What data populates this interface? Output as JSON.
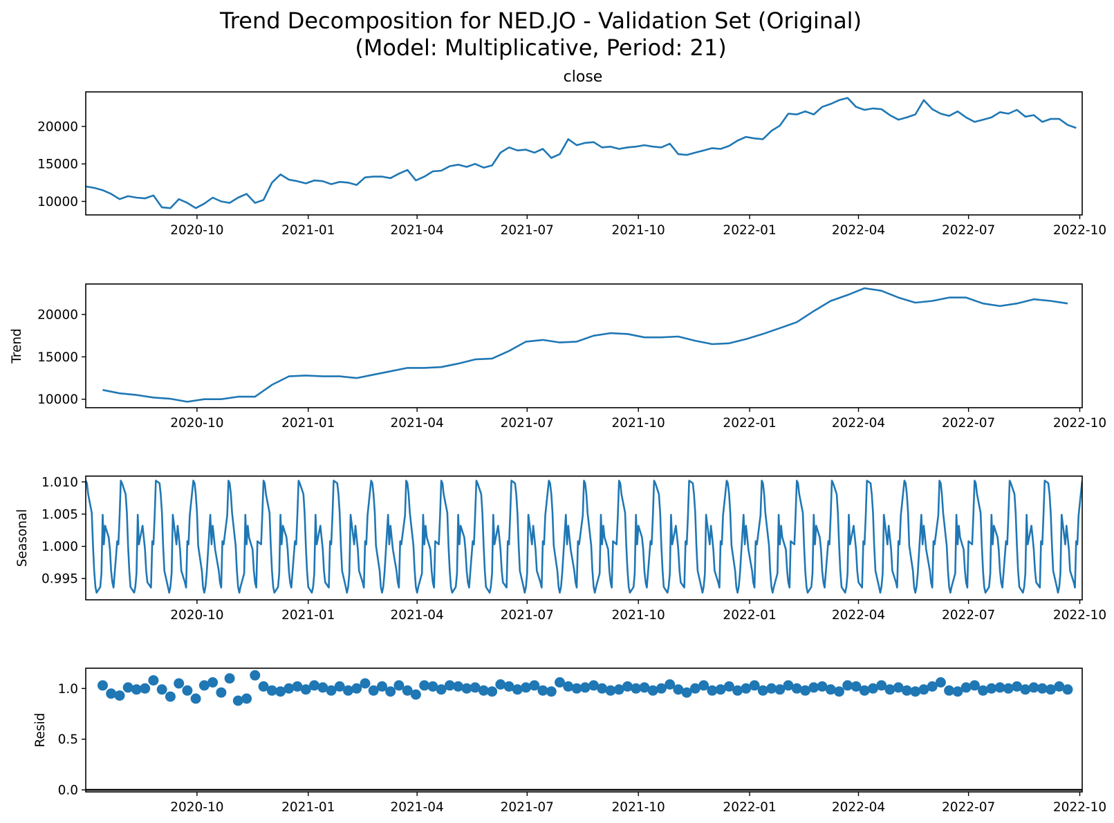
{
  "figure": {
    "title_line1": "Trend Decomposition for NED.JO - Validation Set (Original)",
    "title_line2": "(Model: Multiplicative, Period: 21)"
  },
  "series_color": "#1f77b4",
  "chart_data": [
    {
      "type": "line",
      "title": "close",
      "ylabel": "",
      "xlim": [
        "2020-07-01",
        "2022-10-03"
      ],
      "ylim": [
        8200,
        24600
      ],
      "yticks": [
        10000,
        15000,
        20000
      ],
      "ytick_labels": [
        "10000",
        "15000",
        "20000"
      ],
      "xticks": [
        "2020-10-01",
        "2021-01-01",
        "2021-04-01",
        "2021-07-01",
        "2021-10-01",
        "2022-01-01",
        "2022-04-01",
        "2022-07-01",
        "2022-10-01"
      ],
      "xtick_labels": [
        "2020-10",
        "2021-01",
        "2021-04",
        "2021-07",
        "2021-10",
        "2022-01",
        "2022-04",
        "2022-07",
        "2022-10"
      ],
      "x": [
        "2020-07-01",
        "2020-07-08",
        "2020-07-15",
        "2020-07-22",
        "2020-07-29",
        "2020-08-05",
        "2020-08-12",
        "2020-08-19",
        "2020-08-26",
        "2020-09-02",
        "2020-09-09",
        "2020-09-16",
        "2020-09-23",
        "2020-09-30",
        "2020-10-07",
        "2020-10-14",
        "2020-10-21",
        "2020-10-28",
        "2020-11-04",
        "2020-11-11",
        "2020-11-18",
        "2020-11-25",
        "2020-12-02",
        "2020-12-09",
        "2020-12-16",
        "2020-12-23",
        "2020-12-30",
        "2021-01-06",
        "2021-01-13",
        "2021-01-20",
        "2021-01-27",
        "2021-02-03",
        "2021-02-10",
        "2021-02-17",
        "2021-02-24",
        "2021-03-03",
        "2021-03-10",
        "2021-03-17",
        "2021-03-24",
        "2021-03-31",
        "2021-04-07",
        "2021-04-14",
        "2021-04-21",
        "2021-04-28",
        "2021-05-05",
        "2021-05-12",
        "2021-05-19",
        "2021-05-26",
        "2021-06-02",
        "2021-06-09",
        "2021-06-16",
        "2021-06-23",
        "2021-06-30",
        "2021-07-07",
        "2021-07-14",
        "2021-07-21",
        "2021-07-28",
        "2021-08-04",
        "2021-08-11",
        "2021-08-18",
        "2021-08-25",
        "2021-09-01",
        "2021-09-08",
        "2021-09-15",
        "2021-09-22",
        "2021-09-29",
        "2021-10-06",
        "2021-10-13",
        "2021-10-20",
        "2021-10-27",
        "2021-11-03",
        "2021-11-10",
        "2021-11-17",
        "2021-11-24",
        "2021-12-01",
        "2021-12-08",
        "2021-12-15",
        "2021-12-22",
        "2021-12-29",
        "2022-01-05",
        "2022-01-12",
        "2022-01-19",
        "2022-01-26",
        "2022-02-02",
        "2022-02-09",
        "2022-02-16",
        "2022-02-23",
        "2022-03-02",
        "2022-03-09",
        "2022-03-16",
        "2022-03-23",
        "2022-03-30",
        "2022-04-06",
        "2022-04-13",
        "2022-04-20",
        "2022-04-27",
        "2022-05-04",
        "2022-05-11",
        "2022-05-18",
        "2022-05-25",
        "2022-06-01",
        "2022-06-08",
        "2022-06-15",
        "2022-06-22",
        "2022-06-29",
        "2022-07-06",
        "2022-07-13",
        "2022-07-20",
        "2022-07-27",
        "2022-08-03",
        "2022-08-10",
        "2022-08-17",
        "2022-08-24",
        "2022-08-31",
        "2022-09-07",
        "2022-09-14",
        "2022-09-21",
        "2022-09-28"
      ],
      "y": [
        12000,
        11800,
        11500,
        11000,
        10300,
        10700,
        10500,
        10400,
        10800,
        9200,
        9100,
        10300,
        9800,
        9100,
        9700,
        10500,
        10000,
        9800,
        10500,
        11000,
        9800,
        10200,
        12500,
        13600,
        12900,
        12700,
        12400,
        12800,
        12700,
        12300,
        12600,
        12500,
        12200,
        13200,
        13300,
        13300,
        13100,
        13700,
        14200,
        12800,
        13300,
        14000,
        14100,
        14700,
        14900,
        14600,
        15000,
        14500,
        14800,
        16500,
        17200,
        16800,
        16900,
        16500,
        17000,
        15800,
        16300,
        18300,
        17500,
        17800,
        17900,
        17200,
        17300,
        17000,
        17200,
        17300,
        17500,
        17300,
        17200,
        17700,
        16300,
        16200,
        16500,
        16800,
        17100,
        17000,
        17400,
        18100,
        18600,
        18400,
        18300,
        19400,
        20100,
        21700,
        21600,
        22000,
        21600,
        22600,
        23000,
        23500,
        23800,
        22600,
        22200,
        22400,
        22300,
        21500,
        20900,
        21200,
        21600,
        23500,
        22300,
        21700,
        21400,
        22000,
        21200,
        20600,
        20900,
        21200,
        21900,
        21700,
        22200,
        21300,
        21500,
        20600,
        21000,
        21000,
        20200,
        19800
      ]
    },
    {
      "type": "line",
      "title": "",
      "ylabel": "Trend",
      "xlim": [
        "2020-07-01",
        "2022-10-03"
      ],
      "ylim": [
        9000,
        23600
      ],
      "yticks": [
        10000,
        15000,
        20000
      ],
      "ytick_labels": [
        "10000",
        "15000",
        "20000"
      ],
      "xticks": [
        "2020-10-01",
        "2021-01-01",
        "2021-04-01",
        "2021-07-01",
        "2021-10-01",
        "2022-01-01",
        "2022-04-01",
        "2022-07-01",
        "2022-10-01"
      ],
      "xtick_labels": [
        "2020-10",
        "2021-01",
        "2021-04",
        "2021-07",
        "2021-10",
        "2022-01",
        "2022-04",
        "2022-07",
        "2022-10"
      ],
      "x": [
        "2020-07-15",
        "2020-07-29",
        "2020-08-12",
        "2020-08-26",
        "2020-09-09",
        "2020-09-23",
        "2020-10-07",
        "2020-10-21",
        "2020-11-04",
        "2020-11-18",
        "2020-12-02",
        "2020-12-16",
        "2020-12-30",
        "2021-01-13",
        "2021-01-27",
        "2021-02-10",
        "2021-02-24",
        "2021-03-10",
        "2021-03-24",
        "2021-04-07",
        "2021-04-21",
        "2021-05-05",
        "2021-05-19",
        "2021-06-02",
        "2021-06-16",
        "2021-06-30",
        "2021-07-14",
        "2021-07-28",
        "2021-08-11",
        "2021-08-25",
        "2021-09-08",
        "2021-09-22",
        "2021-10-06",
        "2021-10-20",
        "2021-11-03",
        "2021-11-17",
        "2021-12-01",
        "2021-12-15",
        "2021-12-29",
        "2022-01-12",
        "2022-01-26",
        "2022-02-09",
        "2022-02-23",
        "2022-03-09",
        "2022-03-23",
        "2022-04-06",
        "2022-04-20",
        "2022-05-04",
        "2022-05-18",
        "2022-06-01",
        "2022-06-15",
        "2022-06-29",
        "2022-07-13",
        "2022-07-27",
        "2022-08-10",
        "2022-08-24",
        "2022-09-07",
        "2022-09-21"
      ],
      "y": [
        11100,
        10700,
        10500,
        10200,
        10050,
        9700,
        10000,
        10000,
        10300,
        10300,
        11700,
        12700,
        12800,
        12700,
        12700,
        12500,
        12900,
        13300,
        13700,
        13700,
        13800,
        14200,
        14700,
        14800,
        15700,
        16800,
        17000,
        16700,
        16800,
        17500,
        17800,
        17700,
        17300,
        17300,
        17400,
        16900,
        16500,
        16600,
        17100,
        17700,
        18400,
        19100,
        20400,
        21600,
        22300,
        23100,
        22800,
        22000,
        21400,
        21600,
        22000,
        22000,
        21300,
        21000,
        21300,
        21800,
        21600,
        21300
      ]
    },
    {
      "type": "line",
      "title": "",
      "ylabel": "Seasonal",
      "xlim": [
        "2020-07-01",
        "2022-10-03"
      ],
      "ylim": [
        0.9917,
        1.0109
      ],
      "yticks": [
        0.995,
        1.0,
        1.005,
        1.01
      ],
      "ytick_labels": [
        "0.995",
        "1.000",
        "1.005",
        "1.010"
      ],
      "xticks": [
        "2020-10-01",
        "2021-01-01",
        "2021-04-01",
        "2021-07-01",
        "2021-10-01",
        "2022-01-01",
        "2022-04-01",
        "2022-07-01",
        "2022-10-01"
      ],
      "xtick_labels": [
        "2020-10",
        "2021-01",
        "2021-04",
        "2021-07",
        "2021-10",
        "2022-01",
        "2022-04",
        "2022-07",
        "2022-10"
      ],
      "period_pattern": [
        1.0102,
        1.0098,
        1.0081,
        1.0052,
        1.0001,
        0.9962,
        0.9937,
        0.9928,
        0.9937,
        0.9958,
        1.0049,
        1.0003,
        1.0032,
        1.0014,
        0.9995,
        0.9962,
        0.9944,
        0.9936,
        1.0008,
        1.0003,
        1.0048
      ],
      "start": "2020-07-01",
      "trading_days_per_week": 5
    },
    {
      "type": "scatter",
      "title": "",
      "ylabel": "Resid",
      "xlim": [
        "2020-07-01",
        "2022-10-03"
      ],
      "ylim": [
        -0.02,
        1.2
      ],
      "yticks": [
        0.0,
        0.5,
        1.0
      ],
      "ytick_labels": [
        "0.0",
        "0.5",
        "1.0"
      ],
      "xticks": [
        "2020-10-01",
        "2021-01-01",
        "2021-04-01",
        "2021-07-01",
        "2021-10-01",
        "2022-01-01",
        "2022-04-01",
        "2022-07-01",
        "2022-10-01"
      ],
      "xtick_labels": [
        "2020-10",
        "2021-01",
        "2021-04",
        "2021-07",
        "2021-10",
        "2022-01",
        "2022-04",
        "2022-07",
        "2022-10"
      ],
      "baseline": 0.0,
      "x": [
        "2020-07-15",
        "2020-07-22",
        "2020-07-29",
        "2020-08-05",
        "2020-08-12",
        "2020-08-19",
        "2020-08-26",
        "2020-09-02",
        "2020-09-09",
        "2020-09-16",
        "2020-09-23",
        "2020-09-30",
        "2020-10-07",
        "2020-10-14",
        "2020-10-21",
        "2020-10-28",
        "2020-11-04",
        "2020-11-11",
        "2020-11-18",
        "2020-11-25",
        "2020-12-02",
        "2020-12-09",
        "2020-12-16",
        "2020-12-23",
        "2020-12-30",
        "2021-01-06",
        "2021-01-13",
        "2021-01-20",
        "2021-01-27",
        "2021-02-03",
        "2021-02-10",
        "2021-02-17",
        "2021-02-24",
        "2021-03-03",
        "2021-03-10",
        "2021-03-17",
        "2021-03-24",
        "2021-03-31",
        "2021-04-07",
        "2021-04-14",
        "2021-04-21",
        "2021-04-28",
        "2021-05-05",
        "2021-05-12",
        "2021-05-19",
        "2021-05-26",
        "2021-06-02",
        "2021-06-09",
        "2021-06-16",
        "2021-06-23",
        "2021-06-30",
        "2021-07-07",
        "2021-07-14",
        "2021-07-21",
        "2021-07-28",
        "2021-08-04",
        "2021-08-11",
        "2021-08-18",
        "2021-08-25",
        "2021-09-01",
        "2021-09-08",
        "2021-09-15",
        "2021-09-22",
        "2021-09-29",
        "2021-10-06",
        "2021-10-13",
        "2021-10-20",
        "2021-10-27",
        "2021-11-03",
        "2021-11-10",
        "2021-11-17",
        "2021-11-24",
        "2021-12-01",
        "2021-12-08",
        "2021-12-15",
        "2021-12-22",
        "2021-12-29",
        "2022-01-05",
        "2022-01-12",
        "2022-01-19",
        "2022-01-26",
        "2022-02-02",
        "2022-02-09",
        "2022-02-16",
        "2022-02-23",
        "2022-03-02",
        "2022-03-09",
        "2022-03-16",
        "2022-03-23",
        "2022-03-30",
        "2022-04-06",
        "2022-04-13",
        "2022-04-20",
        "2022-04-27",
        "2022-05-04",
        "2022-05-11",
        "2022-05-18",
        "2022-05-25",
        "2022-06-01",
        "2022-06-08",
        "2022-06-15",
        "2022-06-22",
        "2022-06-29",
        "2022-07-06",
        "2022-07-13",
        "2022-07-20",
        "2022-07-27",
        "2022-08-03",
        "2022-08-10",
        "2022-08-17",
        "2022-08-24",
        "2022-08-31",
        "2022-09-07",
        "2022-09-14",
        "2022-09-21"
      ],
      "y": [
        1.03,
        0.95,
        0.93,
        1.01,
        0.99,
        1.0,
        1.08,
        0.99,
        0.92,
        1.05,
        0.98,
        0.9,
        1.03,
        1.06,
        0.96,
        1.1,
        0.88,
        0.9,
        1.13,
        1.02,
        0.98,
        0.97,
        1.0,
        1.02,
        0.99,
        1.03,
        1.01,
        0.98,
        1.02,
        0.98,
        1.0,
        1.05,
        0.98,
        1.02,
        0.97,
        1.03,
        0.98,
        0.94,
        1.03,
        1.02,
        0.99,
        1.03,
        1.02,
        1.0,
        1.01,
        0.98,
        0.97,
        1.04,
        1.02,
        0.99,
        1.01,
        1.03,
        0.98,
        0.97,
        1.06,
        1.02,
        1.0,
        1.01,
        1.03,
        1.0,
        0.98,
        0.99,
        1.02,
        1.0,
        1.01,
        0.98,
        1.0,
        1.04,
        0.99,
        0.96,
        1.0,
        1.03,
        0.98,
        0.99,
        1.02,
        0.98,
        1.0,
        1.03,
        0.98,
        1.0,
        0.99,
        1.03,
        1.0,
        0.98,
        1.01,
        1.02,
        0.99,
        0.97,
        1.03,
        1.02,
        0.98,
        1.0,
        1.03,
        0.99,
        1.01,
        0.98,
        0.97,
        0.99,
        1.02,
        1.06,
        0.98,
        0.97,
        1.01,
        1.03,
        0.98,
        1.0,
        1.01,
        1.0,
        1.02,
        0.99,
        1.01,
        1.0,
        0.99,
        1.02,
        0.99
      ]
    }
  ]
}
